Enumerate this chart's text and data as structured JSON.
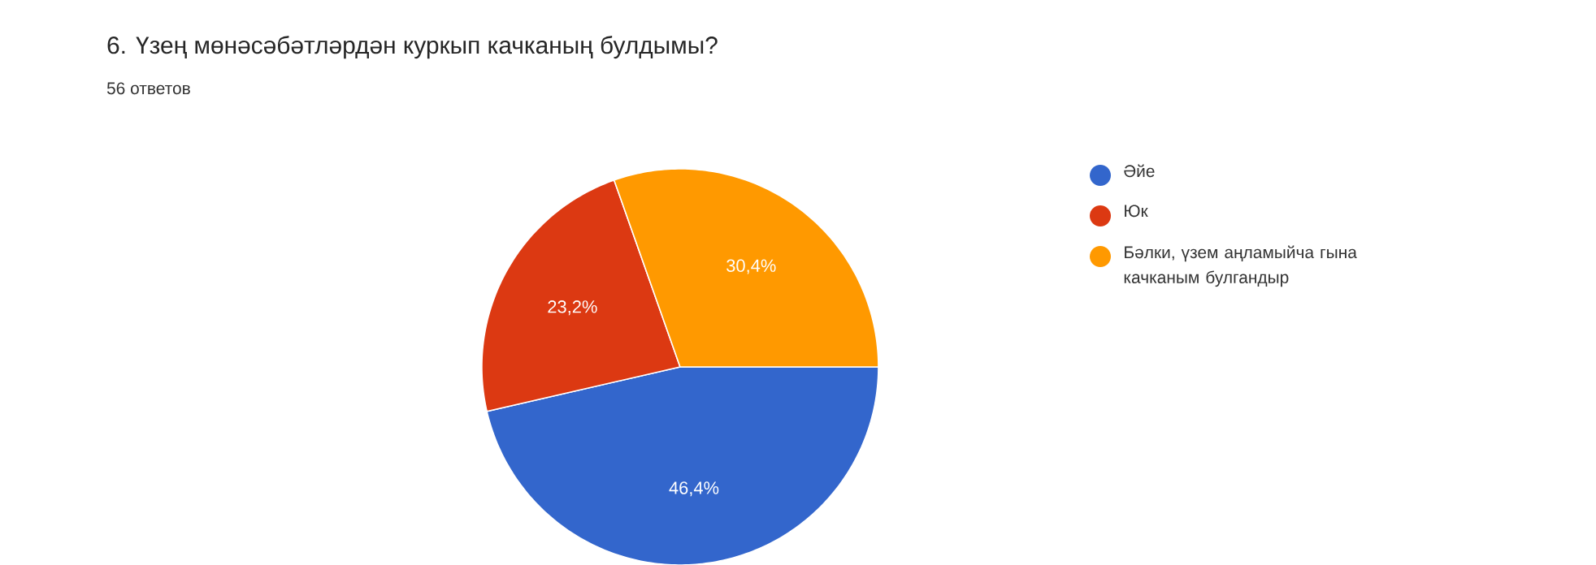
{
  "chart_data": {
    "type": "pie",
    "title": "6. Үзең мөнәсәбәтләрдән куркып качканың булдымы?",
    "subtitle": "56 ответов",
    "categories": [
      "Әйе",
      "Юк",
      "Бәлки, үзем аңламыйча гына качканым булгандыр"
    ],
    "values": [
      46.4,
      23.2,
      30.4
    ],
    "value_labels": [
      "46,4%",
      "23,2%",
      "30,4%"
    ],
    "colors": [
      "#3366cc",
      "#dc3912",
      "#ff9900"
    ],
    "legend": "right"
  }
}
